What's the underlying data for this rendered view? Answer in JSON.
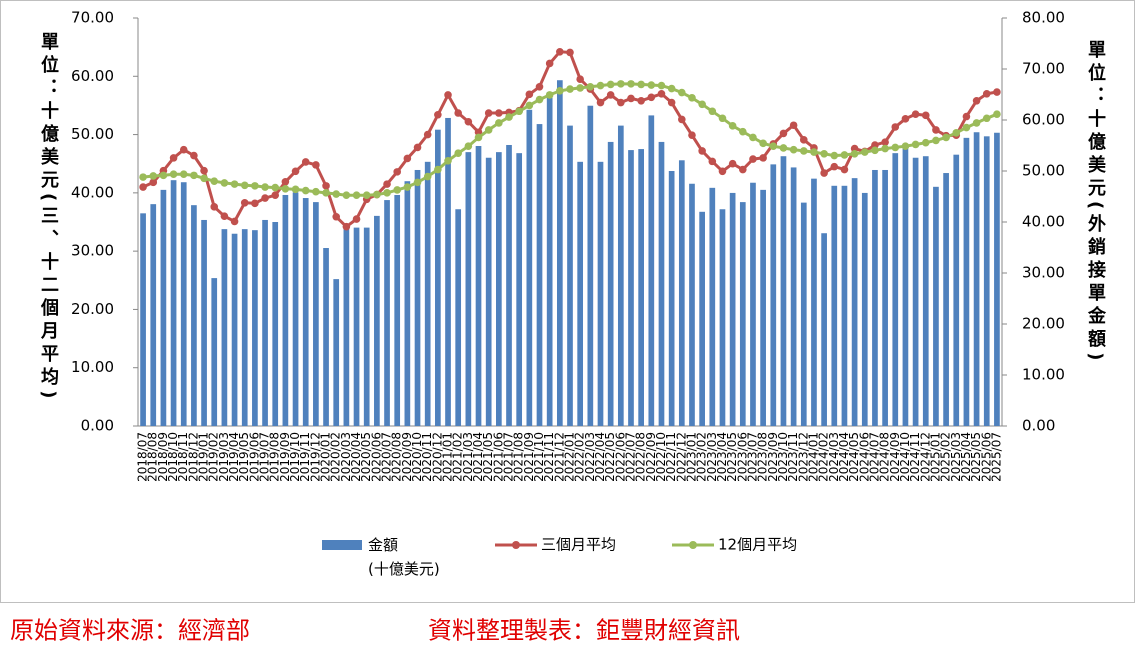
{
  "chart_data": {
    "type": "bar-line",
    "y_label": "單位：十億美元(三、十二個月平均)",
    "y2_label": "單位：十億美元(外銷接單金額)",
    "categories": [
      "2018/07",
      "2018/08",
      "2018/09",
      "2018/10",
      "2018/11",
      "2018/12",
      "2019/01",
      "2019/02",
      "2019/03",
      "2019/04",
      "2019/05",
      "2019/06",
      "2019/07",
      "2019/08",
      "2019/09",
      "2019/10",
      "2019/11",
      "2019/12",
      "2020/01",
      "2020/02",
      "2020/03",
      "2020/04",
      "2020/05",
      "2020/06",
      "2020/07",
      "2020/08",
      "2020/09",
      "2020/10",
      "2020/11",
      "2020/12",
      "2021/01",
      "2021/02",
      "2021/03",
      "2021/04",
      "2021/05",
      "2021/06",
      "2021/07",
      "2021/08",
      "2021/09",
      "2021/10",
      "2021/11",
      "2021/12",
      "2022/01",
      "2022/02",
      "2022/03",
      "2022/04",
      "2022/05",
      "2022/06",
      "2022/07",
      "2022/08",
      "2022/09",
      "2022/10",
      "2022/11",
      "2022/12",
      "2023/01",
      "2023/02",
      "2023/03",
      "2023/04",
      "2023/05",
      "2023/06",
      "2023/07",
      "2023/08",
      "2023/09",
      "2023/10",
      "2023/11",
      "2023/12",
      "2024/01",
      "2024/02",
      "2024/03",
      "2024/04",
      "2024/05",
      "2024/06",
      "2024/07",
      "2024/08",
      "2024/09",
      "2024/10",
      "2024/11",
      "2024/12",
      "2025/01",
      "2025/02",
      "2025/03",
      "2025/04",
      "2025/05",
      "2025/06",
      "2025/07"
    ],
    "series": [
      {
        "name": "金額\n(十億美元)",
        "type": "bar",
        "axis": "y2",
        "color": "#4f81bd",
        "values": [
          41.7,
          43.5,
          46.3,
          48.2,
          47.8,
          43.3,
          40.4,
          29.0,
          38.6,
          37.7,
          38.6,
          38.4,
          40.4,
          40.0,
          45.3,
          45.8,
          44.7,
          43.9,
          34.9,
          28.8,
          38.9,
          38.9,
          38.9,
          41.2,
          44.3,
          45.3,
          48.0,
          50.2,
          51.8,
          58.1,
          60.4,
          42.5,
          53.7,
          54.9,
          52.6,
          53.7,
          55.1,
          53.5,
          62.0,
          59.2,
          65.5,
          67.8,
          58.9,
          51.8,
          62.8,
          51.8,
          55.7,
          58.9,
          54.1,
          54.3,
          60.9,
          55.7,
          50.0,
          52.1,
          47.5,
          42.0,
          46.7,
          42.5,
          45.7,
          43.9,
          47.7,
          46.3,
          51.3,
          52.9,
          50.7,
          43.8,
          48.5,
          37.8,
          47.1,
          47.1,
          48.6,
          45.7,
          50.2,
          50.2,
          53.5,
          54.5,
          52.6,
          52.9,
          46.9,
          49.6,
          53.2,
          56.5,
          57.6,
          56.8,
          57.5
        ]
      },
      {
        "name": "三個月平均",
        "type": "line",
        "color": "#c0504d",
        "values": [
          41.0,
          41.8,
          43.8,
          46.0,
          47.4,
          46.4,
          43.8,
          37.6,
          36.0,
          35.1,
          38.3,
          38.2,
          39.1,
          39.6,
          41.9,
          43.7,
          45.3,
          44.8,
          41.2,
          35.9,
          34.2,
          35.5,
          38.9,
          39.7,
          41.5,
          43.6,
          45.9,
          47.8,
          50.0,
          53.4,
          56.8,
          53.7,
          52.2,
          50.4,
          53.7,
          53.7,
          53.8,
          54.1,
          56.9,
          58.2,
          62.2,
          64.2,
          64.1,
          59.5,
          57.8,
          55.5,
          56.8,
          55.5,
          56.2,
          55.8,
          56.4,
          57.0,
          55.5,
          52.6,
          49.9,
          47.2,
          45.4,
          43.7,
          45.0,
          44.0,
          45.8,
          46.0,
          48.4,
          50.2,
          51.6,
          49.1,
          47.7,
          43.4,
          44.5,
          44.0,
          47.6,
          47.1,
          48.2,
          48.7,
          51.3,
          52.7,
          53.5,
          53.3,
          50.8,
          49.8,
          49.9,
          53.1,
          55.8,
          57.0,
          57.3
        ]
      },
      {
        "name": "12個月平均",
        "type": "line",
        "color": "#9bbb59",
        "values": [
          42.7,
          42.9,
          43.0,
          43.2,
          43.2,
          43.0,
          42.5,
          42.0,
          41.7,
          41.5,
          41.3,
          41.2,
          41.0,
          40.9,
          40.7,
          40.6,
          40.4,
          40.2,
          40.0,
          39.8,
          39.6,
          39.6,
          39.6,
          39.7,
          40.0,
          40.5,
          41.0,
          41.8,
          42.8,
          44.0,
          45.5,
          46.8,
          48.0,
          49.5,
          50.8,
          52.0,
          53.0,
          54.0,
          55.0,
          56.0,
          56.8,
          57.5,
          57.8,
          58.0,
          58.2,
          58.4,
          58.6,
          58.7,
          58.7,
          58.6,
          58.5,
          58.4,
          57.9,
          57.2,
          56.3,
          55.2,
          54.0,
          52.8,
          51.5,
          50.5,
          49.5,
          48.5,
          48.0,
          47.7,
          47.4,
          47.2,
          47.0,
          46.7,
          46.4,
          46.5,
          46.7,
          47.0,
          47.3,
          47.6,
          47.8,
          48.0,
          48.3,
          48.6,
          49.0,
          49.5,
          50.3,
          51.2,
          52.0,
          52.8,
          53.5
        ]
      }
    ],
    "ylim": [
      0,
      70
    ],
    "yticks": [
      {
        "value": 0,
        "label": "0.00"
      },
      {
        "value": 10,
        "label": "10.00"
      },
      {
        "value": 20,
        "label": "20.00"
      },
      {
        "value": 30,
        "label": "30.00"
      },
      {
        "value": 40,
        "label": "40.00"
      },
      {
        "value": 50,
        "label": "50.00"
      },
      {
        "value": 60,
        "label": "60.00"
      },
      {
        "value": 70,
        "label": "70.00"
      }
    ],
    "y2lim": [
      0,
      80
    ],
    "y2ticks": [
      {
        "value": 0,
        "label": "0.00"
      },
      {
        "value": 10,
        "label": "10.00"
      },
      {
        "value": 20,
        "label": "20.00"
      },
      {
        "value": 30,
        "label": "30.00"
      },
      {
        "value": 40,
        "label": "40.00"
      },
      {
        "value": 50,
        "label": "50.00"
      },
      {
        "value": 60,
        "label": "60.00"
      },
      {
        "value": 70,
        "label": "70.00"
      },
      {
        "value": 80,
        "label": "80.00"
      }
    ],
    "grid": false,
    "legend": "bottom"
  },
  "footer": {
    "source": "原始資料來源：經濟部",
    "maker": "資料整理製表：鉅豐財經資訊"
  }
}
